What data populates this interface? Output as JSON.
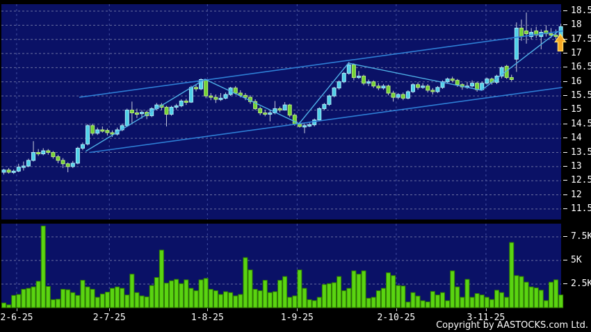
{
  "footer": {
    "copyright": "Copyright by AASTOCKS.com Ltd."
  },
  "chart_data": {
    "type": "candlestick_with_volume",
    "title": "",
    "price_axis": {
      "min": 11.5,
      "max": 18.5,
      "step": 0.5,
      "tick_labels": [
        "18.5",
        "18",
        "17.5",
        "17",
        "16.5",
        "16",
        "15.5",
        "15",
        "14.5",
        "14",
        "13.5",
        "13",
        "12.5",
        "12",
        "11.5"
      ],
      "tick_values": [
        18.5,
        18,
        17.5,
        17,
        16.5,
        16,
        15.5,
        15,
        14.5,
        14,
        13.5,
        13,
        12.5,
        12,
        11.5
      ]
    },
    "volume_axis": {
      "tick_labels": [
        "7.5K",
        "5K",
        "2.5K"
      ],
      "tick_values": [
        7500,
        5000,
        2500
      ],
      "max": 8700
    },
    "x_axis": {
      "tick_labels": [
        "2-6-25",
        "2-7-25",
        "1-8-25",
        "1-9-25",
        "2-10-25",
        "3-11-25"
      ],
      "tick_indices": [
        2.6,
        21.4,
        41.3,
        59.5,
        79.6,
        97.8
      ]
    },
    "legend": "none",
    "grid": "dashed",
    "candles_format": "open,high,low,close (close>open rendered cyan/up, else green/down)",
    "candles": [
      [
        12.8,
        12.92,
        12.72,
        12.88
      ],
      [
        12.88,
        12.95,
        12.75,
        12.8
      ],
      [
        12.8,
        12.9,
        12.74,
        12.84
      ],
      [
        12.84,
        13.1,
        12.8,
        12.98
      ],
      [
        12.98,
        13.18,
        12.86,
        13.02
      ],
      [
        13.02,
        13.28,
        12.98,
        13.22
      ],
      [
        13.22,
        13.9,
        13.18,
        13.5
      ],
      [
        13.5,
        13.62,
        13.38,
        13.45
      ],
      [
        13.45,
        13.65,
        13.4,
        13.56
      ],
      [
        13.56,
        13.62,
        13.42,
        13.5
      ],
      [
        13.5,
        13.55,
        13.28,
        13.35
      ],
      [
        13.35,
        13.42,
        13.12,
        13.22
      ],
      [
        13.22,
        13.3,
        12.95,
        13.1
      ],
      [
        13.1,
        13.15,
        12.8,
        13.0
      ],
      [
        13.0,
        13.2,
        12.95,
        13.12
      ],
      [
        13.12,
        13.7,
        13.08,
        13.65
      ],
      [
        13.65,
        13.85,
        13.58,
        13.78
      ],
      [
        13.8,
        14.5,
        13.75,
        14.45
      ],
      [
        14.45,
        14.52,
        14.1,
        14.18
      ],
      [
        14.18,
        14.38,
        14.12,
        14.3
      ],
      [
        14.3,
        14.42,
        14.2,
        14.28
      ],
      [
        14.28,
        14.35,
        14.1,
        14.2
      ],
      [
        14.2,
        14.28,
        14.05,
        14.15
      ],
      [
        14.15,
        14.38,
        14.1,
        14.3
      ],
      [
        14.3,
        14.52,
        14.25,
        14.45
      ],
      [
        14.45,
        15.05,
        14.4,
        15.0
      ],
      [
        15.0,
        15.3,
        14.55,
        14.9
      ],
      [
        14.9,
        15.05,
        14.72,
        14.88
      ],
      [
        14.88,
        15.0,
        14.7,
        14.92
      ],
      [
        14.92,
        14.98,
        14.68,
        14.8
      ],
      [
        14.8,
        15.1,
        14.75,
        15.05
      ],
      [
        15.05,
        15.25,
        15.0,
        15.18
      ],
      [
        15.18,
        15.25,
        15.0,
        15.1
      ],
      [
        15.1,
        15.15,
        14.42,
        14.85
      ],
      [
        14.85,
        15.15,
        14.8,
        15.1
      ],
      [
        15.1,
        15.22,
        15.02,
        15.15
      ],
      [
        15.15,
        15.38,
        15.1,
        15.32
      ],
      [
        15.32,
        15.4,
        15.18,
        15.28
      ],
      [
        15.28,
        15.86,
        15.25,
        15.8
      ],
      [
        15.8,
        15.88,
        15.66,
        15.75
      ],
      [
        15.75,
        16.12,
        15.7,
        16.08
      ],
      [
        16.05,
        16.1,
        15.42,
        15.5
      ],
      [
        15.5,
        15.6,
        15.35,
        15.45
      ],
      [
        15.45,
        15.55,
        15.25,
        15.38
      ],
      [
        15.38,
        15.6,
        15.32,
        15.42
      ],
      [
        15.42,
        15.62,
        15.38,
        15.55
      ],
      [
        15.55,
        15.82,
        15.5,
        15.78
      ],
      [
        15.78,
        15.85,
        15.55,
        15.6
      ],
      [
        15.6,
        15.7,
        15.45,
        15.52
      ],
      [
        15.52,
        15.6,
        15.35,
        15.45
      ],
      [
        15.45,
        15.52,
        15.22,
        15.3
      ],
      [
        15.3,
        15.38,
        15.0,
        15.05
      ],
      [
        15.05,
        15.12,
        14.82,
        14.9
      ],
      [
        14.9,
        15.0,
        14.78,
        14.85
      ],
      [
        14.85,
        15.0,
        14.6,
        14.9
      ],
      [
        14.9,
        15.32,
        14.85,
        15.05
      ],
      [
        15.05,
        15.12,
        14.92,
        15.0
      ],
      [
        15.0,
        15.28,
        14.98,
        15.18
      ],
      [
        15.18,
        15.22,
        14.75,
        14.82
      ],
      [
        14.82,
        14.88,
        14.45,
        14.5
      ],
      [
        14.5,
        14.58,
        14.38,
        14.42
      ],
      [
        14.42,
        14.52,
        14.18,
        14.45
      ],
      [
        14.45,
        14.58,
        14.4,
        14.48
      ],
      [
        14.48,
        14.7,
        14.42,
        14.65
      ],
      [
        14.65,
        15.1,
        14.6,
        15.05
      ],
      [
        15.05,
        15.25,
        15.0,
        15.2
      ],
      [
        15.2,
        15.55,
        15.15,
        15.5
      ],
      [
        15.5,
        15.82,
        15.45,
        15.78
      ],
      [
        15.78,
        16.05,
        15.72,
        16.0
      ],
      [
        16.0,
        16.35,
        15.95,
        16.3
      ],
      [
        16.3,
        16.7,
        16.25,
        16.6
      ],
      [
        16.6,
        16.65,
        16.05,
        16.15
      ],
      [
        16.15,
        16.38,
        16.1,
        16.2
      ],
      [
        16.2,
        16.25,
        15.88,
        15.95
      ],
      [
        15.95,
        16.08,
        15.85,
        16.0
      ],
      [
        16.0,
        16.05,
        15.78,
        15.85
      ],
      [
        15.85,
        15.95,
        15.7,
        15.78
      ],
      [
        15.78,
        15.92,
        15.72,
        15.85
      ],
      [
        15.85,
        15.9,
        15.52,
        15.6
      ],
      [
        15.6,
        15.68,
        15.3,
        15.45
      ],
      [
        15.45,
        15.6,
        15.38,
        15.55
      ],
      [
        15.55,
        15.62,
        15.35,
        15.42
      ],
      [
        15.42,
        15.7,
        15.38,
        15.65
      ],
      [
        15.65,
        15.95,
        15.6,
        15.9
      ],
      [
        15.9,
        15.98,
        15.72,
        15.8
      ],
      [
        15.8,
        15.95,
        15.75,
        15.85
      ],
      [
        15.85,
        15.92,
        15.62,
        15.7
      ],
      [
        15.7,
        15.78,
        15.55,
        15.65
      ],
      [
        15.65,
        15.85,
        15.6,
        15.8
      ],
      [
        15.8,
        16.05,
        15.75,
        16.0
      ],
      [
        16.0,
        16.15,
        15.95,
        16.1
      ],
      [
        16.1,
        16.18,
        15.98,
        16.05
      ],
      [
        16.05,
        16.1,
        15.82,
        15.9
      ],
      [
        15.9,
        15.95,
        15.72,
        15.82
      ],
      [
        15.82,
        16.0,
        15.75,
        15.85
      ],
      [
        15.85,
        16.05,
        15.8,
        15.95
      ],
      [
        15.95,
        16.0,
        15.65,
        15.72
      ],
      [
        15.72,
        16.0,
        15.68,
        15.95
      ],
      [
        15.95,
        16.15,
        15.9,
        16.1
      ],
      [
        16.1,
        16.15,
        15.9,
        15.98
      ],
      [
        15.98,
        16.25,
        15.92,
        16.2
      ],
      [
        16.2,
        16.55,
        16.12,
        16.5
      ],
      [
        16.55,
        16.6,
        16.1,
        16.15
      ],
      [
        16.15,
        16.25,
        16.02,
        16.08
      ],
      [
        16.8,
        18.1,
        16.35,
        17.9
      ],
      [
        17.9,
        18.2,
        17.45,
        17.6
      ],
      [
        17.8,
        18.45,
        17.35,
        17.7
      ],
      [
        17.6,
        17.9,
        17.5,
        17.75
      ],
      [
        17.8,
        17.95,
        17.55,
        17.65
      ],
      [
        17.6,
        17.85,
        17.15,
        17.75
      ],
      [
        17.8,
        18.0,
        17.6,
        17.7
      ],
      [
        17.7,
        17.9,
        17.55,
        17.65
      ],
      [
        17.65,
        17.85,
        17.5,
        17.6
      ],
      [
        17.6,
        18.05,
        17.48,
        17.95
      ]
    ],
    "volumes": [
      500,
      300,
      1300,
      1400,
      1950,
      2050,
      2200,
      2800,
      8650,
      2250,
      850,
      900,
      1950,
      1900,
      1600,
      1300,
      2900,
      2200,
      1950,
      1100,
      1450,
      1650,
      2050,
      2200,
      2050,
      1350,
      3550,
      1600,
      1250,
      1150,
      2350,
      3200,
      6100,
      2600,
      2850,
      3000,
      2550,
      2950,
      2050,
      1800,
      2950,
      3100,
      1950,
      1800,
      1400,
      1700,
      1600,
      1250,
      1400,
      5300,
      4000,
      1950,
      1800,
      2900,
      1600,
      1700,
      2900,
      3300,
      1100,
      1250,
      4000,
      2050,
      850,
      750,
      1100,
      2450,
      2550,
      2650,
      3300,
      1800,
      2050,
      3900,
      3550,
      3900,
      1000,
      1100,
      1800,
      2050,
      3700,
      3400,
      2350,
      2300,
      600,
      1600,
      1230,
      740,
      615,
      1720,
      1350,
      1600,
      740,
      3900,
      2200,
      1100,
      3000,
      1100,
      1500,
      1350,
      1100,
      860,
      1850,
      1600,
      1100,
      6900,
      3400,
      3300,
      2700,
      2200,
      2100,
      1850,
      750,
      2700,
      2950,
      1350
    ],
    "trendlines": {
      "channel_upper": [
        {
          "i": 15.3,
          "p": 15.45
        },
        {
          "i": 113.5,
          "p": 17.8
        }
      ],
      "channel_lower": [
        {
          "i": 17.4,
          "p": 13.5
        },
        {
          "i": 113.3,
          "p": 15.8
        }
      ],
      "zigzag": [
        {
          "i": 16.6,
          "p": 13.54
        },
        {
          "i": 40.8,
          "p": 16.09
        },
        {
          "i": 59.9,
          "p": 14.52
        },
        {
          "i": 69.9,
          "p": 16.66
        },
        {
          "i": 96.9,
          "p": 15.7
        },
        {
          "i": 112.4,
          "p": 17.78
        }
      ]
    },
    "annotations": {
      "up_arrow": {
        "i": 112.9,
        "p": 17.68
      }
    },
    "colors": {
      "background": "#000000",
      "pane_background": "#0a1166",
      "up_candle": "#4ed0e8",
      "up_candle_border": "#aeeffb",
      "down_candle": "#72d334",
      "down_candle_border": "#bdee7d",
      "wick": "#c9cede",
      "volume_bar": "#5ad411",
      "volume_bar_border": "#2f7c00",
      "grid_horizontal": "#8a90b5",
      "grid_vertical": "#4a56a8",
      "channel_line": "#2e7fd6",
      "zigzag_line": "#4fb1e8",
      "arrow_fill": "#f5a823",
      "arrow_border": "#ffd966",
      "axis_text": "#ffffff"
    }
  }
}
